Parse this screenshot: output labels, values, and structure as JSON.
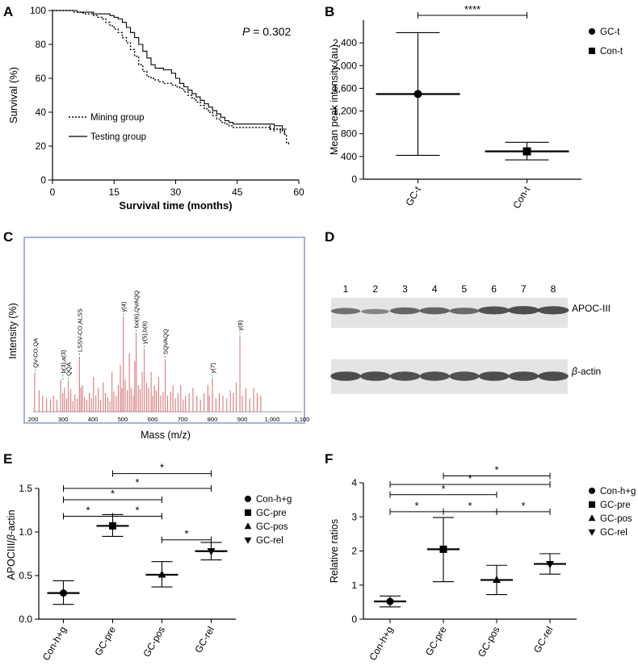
{
  "colors": {
    "ink": "#000000",
    "spectrum_peak": "#d9797b",
    "spectrum_frame": "#6b7fc4",
    "spectrum_dashed": "#3aa34a",
    "blot_band": "#3a3a3a",
    "blot_bg": "#e4e4e4"
  },
  "chart_data": [
    {
      "panel": "A",
      "type": "line",
      "subtype": "kaplan-meier",
      "xlabel": "Survival time (months)",
      "ylabel": "Survival (%)",
      "xlim": [
        0,
        60
      ],
      "ylim": [
        0,
        100
      ],
      "xticks": [
        0,
        15,
        30,
        45,
        60
      ],
      "yticks": [
        0,
        20,
        40,
        60,
        80,
        100
      ],
      "annotation_p": "P",
      "annotation_value": " = 0.302",
      "series": [
        {
          "name": "Mining group",
          "style": "dotted",
          "x": [
            0,
            3,
            5,
            7,
            8,
            10,
            11,
            12,
            13,
            14,
            15,
            16,
            17,
            18,
            19,
            20,
            21,
            22,
            23,
            24,
            25,
            26,
            27,
            28,
            29,
            30,
            31,
            32,
            33,
            34,
            35,
            36,
            37,
            38,
            39,
            40,
            41,
            42,
            43,
            44,
            45,
            46,
            47,
            48,
            49,
            50,
            51,
            52,
            53,
            54,
            55,
            56,
            56.5,
            57,
            57.5
          ],
          "y": [
            100,
            100,
            99,
            98.5,
            98,
            97,
            96,
            95,
            93,
            91,
            89,
            87,
            84,
            81,
            77,
            73,
            68,
            64,
            61,
            60,
            59,
            58,
            57,
            57,
            56,
            55,
            54,
            52,
            50,
            48,
            46,
            44,
            42,
            40,
            38,
            36,
            34,
            33,
            32,
            31,
            31,
            31,
            31,
            31,
            31,
            31,
            31,
            31,
            30,
            30,
            30,
            29,
            27,
            22,
            21
          ]
        },
        {
          "name": "Testing group",
          "style": "solid",
          "x": [
            0,
            3,
            6,
            8,
            10,
            12,
            14,
            15,
            16,
            17,
            18,
            19,
            20,
            21,
            22,
            23,
            24,
            25,
            26,
            27,
            28,
            29,
            30,
            31,
            32,
            33,
            34,
            35,
            36,
            37,
            38,
            39,
            40,
            41,
            42,
            43,
            44,
            45,
            46,
            47,
            48,
            49,
            50,
            51,
            52,
            53,
            54,
            55,
            56,
            57
          ],
          "y": [
            100,
            100,
            99,
            99,
            98,
            98,
            97,
            96,
            95,
            93,
            90,
            87,
            84,
            80,
            76,
            72,
            68,
            66,
            66,
            65,
            65,
            63,
            60,
            57,
            55,
            53,
            51,
            49,
            47,
            45,
            43,
            41,
            39,
            37,
            35,
            34,
            33,
            33,
            33,
            33,
            33,
            33,
            33,
            33,
            33,
            33,
            32,
            32,
            30,
            30
          ]
        }
      ]
    },
    {
      "panel": "B",
      "type": "scatter",
      "subtype": "mean-with-error-bars",
      "ylabel": "Mean peak intensity (au)",
      "categories": [
        "GC-t",
        "Con-t"
      ],
      "ylim": [
        0,
        2800
      ],
      "yticks": [
        0,
        400,
        800,
        1200,
        1600,
        2000,
        2400
      ],
      "ytick_labels": [
        "0",
        "400",
        "800",
        "1,200",
        "1,600",
        "2,000",
        "2,400"
      ],
      "series": [
        {
          "name": "GC-t",
          "marker": "circle",
          "mean": 1500,
          "upper": 2580,
          "lower": 420
        },
        {
          "name": "Con-t",
          "marker": "square",
          "mean": 490,
          "upper": 650,
          "lower": 340
        }
      ],
      "significance": [
        {
          "between": [
            "GC-t",
            "Con-t"
          ],
          "label": "****"
        }
      ]
    },
    {
      "panel": "C",
      "type": "bar",
      "subtype": "mass-spectrum",
      "xlabel": "Mass (m/z)",
      "ylabel": "Intensity (%)",
      "xlim": [
        200,
        1100
      ],
      "xticks": [
        200,
        300,
        400,
        500,
        600,
        700,
        800,
        900,
        1000,
        1100
      ],
      "xtick_labels": [
        "200",
        "300",
        "400",
        "500",
        "600",
        "700",
        "800",
        "900",
        "1,000",
        "1,100"
      ],
      "ylim": [
        0,
        100
      ],
      "peaks": [
        [
          205,
          28
        ],
        [
          220,
          16
        ],
        [
          232,
          12
        ],
        [
          245,
          10
        ],
        [
          258,
          9
        ],
        [
          268,
          12
        ],
        [
          280,
          9
        ],
        [
          292,
          24
        ],
        [
          299,
          14
        ],
        [
          305,
          18
        ],
        [
          312,
          10
        ],
        [
          318,
          22
        ],
        [
          326,
          17
        ],
        [
          333,
          8
        ],
        [
          340,
          13
        ],
        [
          348,
          10
        ],
        [
          355,
          40
        ],
        [
          360,
          18
        ],
        [
          365,
          20
        ],
        [
          372,
          11
        ],
        [
          380,
          9
        ],
        [
          388,
          14
        ],
        [
          395,
          10
        ],
        [
          402,
          26
        ],
        [
          410,
          12
        ],
        [
          418,
          18
        ],
        [
          426,
          9
        ],
        [
          435,
          22
        ],
        [
          442,
          14
        ],
        [
          450,
          11
        ],
        [
          457,
          8
        ],
        [
          464,
          30
        ],
        [
          470,
          15
        ],
        [
          478,
          12
        ],
        [
          485,
          20
        ],
        [
          492,
          35
        ],
        [
          497,
          18
        ],
        [
          502,
          70
        ],
        [
          508,
          24
        ],
        [
          515,
          16
        ],
        [
          522,
          44
        ],
        [
          528,
          18
        ],
        [
          535,
          12
        ],
        [
          540,
          38
        ],
        [
          545,
          58
        ],
        [
          552,
          20
        ],
        [
          558,
          17
        ],
        [
          565,
          30
        ],
        [
          572,
          46
        ],
        [
          580,
          22
        ],
        [
          587,
          18
        ],
        [
          595,
          30
        ],
        [
          600,
          12
        ],
        [
          606,
          20
        ],
        [
          612,
          16
        ],
        [
          620,
          26
        ],
        [
          627,
          12
        ],
        [
          635,
          15
        ],
        [
          642,
          38
        ],
        [
          650,
          12
        ],
        [
          660,
          15
        ],
        [
          668,
          20
        ],
        [
          676,
          10
        ],
        [
          685,
          14
        ],
        [
          694,
          20
        ],
        [
          702,
          9
        ],
        [
          710,
          12
        ],
        [
          722,
          14
        ],
        [
          735,
          18
        ],
        [
          748,
          12
        ],
        [
          760,
          9
        ],
        [
          772,
          14
        ],
        [
          785,
          20
        ],
        [
          790,
          12
        ],
        [
          800,
          24
        ],
        [
          812,
          10
        ],
        [
          823,
          14
        ],
        [
          835,
          12
        ],
        [
          848,
          10
        ],
        [
          860,
          16
        ],
        [
          870,
          14
        ],
        [
          880,
          22
        ],
        [
          892,
          56
        ],
        [
          900,
          12
        ],
        [
          912,
          18
        ],
        [
          925,
          10
        ],
        [
          938,
          18
        ],
        [
          950,
          14
        ],
        [
          962,
          12
        ]
      ],
      "peak_labels": [
        {
          "text": "QV-CO,QA",
          "mz": 207,
          "height": 28
        },
        {
          "text": "b(3),a(3)",
          "mz": 300,
          "height": 24
        },
        {
          "text": "QQA",
          "mz": 318,
          "height": 22
        },
        {
          "text": "LSSV-CO,ALSS",
          "mz": 355,
          "height": 40
        },
        {
          "text": "y(4)",
          "mz": 502,
          "height": 70
        },
        {
          "text": "bo(6),QVAQQ",
          "mz": 545,
          "height": 58
        },
        {
          "text": "y(5),b(6)",
          "mz": 572,
          "height": 46
        },
        {
          "text": "SQVAQQ",
          "mz": 642,
          "height": 38
        },
        {
          "text": "y(7)",
          "mz": 800,
          "height": 24
        },
        {
          "text": "y(8)",
          "mz": 892,
          "height": 56
        }
      ]
    },
    {
      "panel": "E",
      "type": "scatter",
      "subtype": "mean-with-error-bars",
      "ylabel_prefix": "APOCIII/",
      "ylabel_italic": "β",
      "ylabel_suffix": "-actin",
      "categories": [
        "Con-h+g",
        "GC-pre",
        "GC-pos",
        "GC-rel"
      ],
      "ylim": [
        0,
        1.5
      ],
      "yticks": [
        0.0,
        0.5,
        1.0,
        1.5
      ],
      "ytick_labels": [
        "0.0",
        "0.5",
        "1.0",
        "1.5"
      ],
      "series": [
        {
          "name": "Con-h+g",
          "marker": "circle",
          "mean": 0.3,
          "upper": 0.44,
          "lower": 0.17
        },
        {
          "name": "GC-pre",
          "marker": "square",
          "mean": 1.07,
          "upper": 1.2,
          "lower": 0.95
        },
        {
          "name": "GC-pos",
          "marker": "triangle-up",
          "mean": 0.51,
          "upper": 0.66,
          "lower": 0.37
        },
        {
          "name": "GC-rel",
          "marker": "triangle-down",
          "mean": 0.78,
          "upper": 0.88,
          "lower": 0.68
        }
      ],
      "significance": [
        {
          "between": [
            "GC-pre",
            "GC-rel"
          ],
          "label": "*",
          "level": 1.67
        },
        {
          "between": [
            "Con-h+g",
            "GC-rel"
          ],
          "label": "*",
          "level": 1.5
        },
        {
          "between": [
            "Con-h+g",
            "GC-pos"
          ],
          "label": "*",
          "level": 1.37
        },
        {
          "between": [
            "Con-h+g",
            "GC-pre"
          ],
          "label": "*",
          "level": 1.18
        },
        {
          "between": [
            "GC-pre",
            "GC-pos"
          ],
          "label": "*",
          "level": 1.18
        },
        {
          "between": [
            "GC-pos",
            "GC-rel"
          ],
          "label": "*",
          "level": 0.91
        }
      ]
    },
    {
      "panel": "F",
      "type": "scatter",
      "subtype": "mean-with-error-bars",
      "ylabel": "Relative ratios",
      "categories": [
        "Con-h+g",
        "GC-pre",
        "GC-pos",
        "GC-rel"
      ],
      "ylim": [
        0,
        4
      ],
      "yticks": [
        0,
        1,
        2,
        3,
        4
      ],
      "ytick_labels": [
        "0",
        "1",
        "2",
        "3",
        "4"
      ],
      "series": [
        {
          "name": "Con-h+g",
          "marker": "circle",
          "mean": 0.52,
          "upper": 0.68,
          "lower": 0.36
        },
        {
          "name": "GC-pre",
          "marker": "square",
          "mean": 2.05,
          "upper": 2.98,
          "lower": 1.1
        },
        {
          "name": "GC-pos",
          "marker": "triangle-up",
          "mean": 1.15,
          "upper": 1.58,
          "lower": 0.72
        },
        {
          "name": "GC-rel",
          "marker": "triangle-down",
          "mean": 1.62,
          "upper": 1.92,
          "lower": 1.32
        }
      ],
      "significance": [
        {
          "between": [
            "GC-pre",
            "GC-rel"
          ],
          "label": "*",
          "level": 4.2
        },
        {
          "between": [
            "Con-h+g",
            "GC-rel"
          ],
          "label": "*",
          "level": 3.95
        },
        {
          "between": [
            "Con-h+g",
            "GC-pos"
          ],
          "label": "*",
          "level": 3.65
        },
        {
          "between": [
            "Con-h+g",
            "GC-pre"
          ],
          "label": "*",
          "level": 3.15
        },
        {
          "between": [
            "GC-pre",
            "GC-pos"
          ],
          "label": "*",
          "level": 3.15
        },
        {
          "between": [
            "GC-pos",
            "GC-rel"
          ],
          "label": "*",
          "level": 3.15
        }
      ]
    }
  ],
  "blot": {
    "panel": "D",
    "lanes": [
      "1",
      "2",
      "3",
      "4",
      "5",
      "6",
      "7",
      "8"
    ],
    "target_label": "APOC-III",
    "loading_label_italic": "β",
    "loading_label_suffix": "-actin",
    "apoc_intensity": [
      0.55,
      0.35,
      0.65,
      0.68,
      0.6,
      0.85,
      0.9,
      0.88
    ],
    "actin_intensity": [
      0.9,
      0.88,
      0.86,
      0.85,
      0.85,
      0.9,
      0.88,
      0.9
    ]
  },
  "panel_letters": [
    "A",
    "B",
    "C",
    "D",
    "E",
    "F"
  ]
}
